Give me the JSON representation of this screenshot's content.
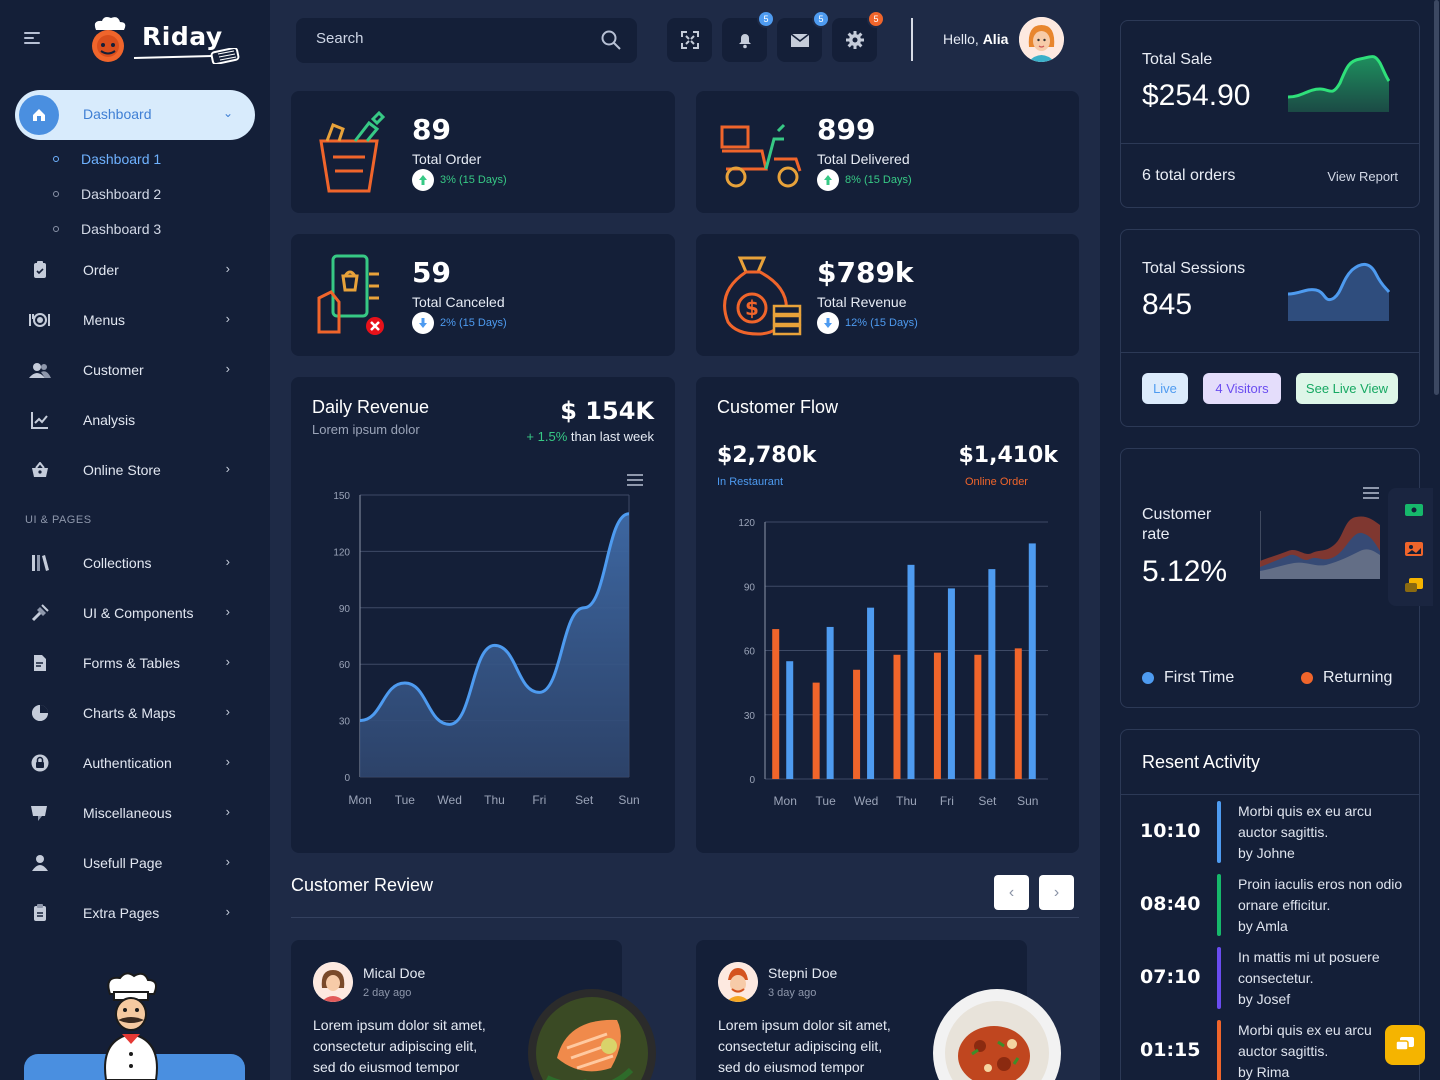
{
  "brand": {
    "name": "Riday"
  },
  "sidebar": {
    "active": {
      "label": "Dashboard"
    },
    "subitems": [
      "Dashboard 1",
      "Dashboard 2",
      "Dashboard 3"
    ],
    "items": [
      {
        "label": "Order",
        "icon": "clipboard-check-icon"
      },
      {
        "label": "Menus",
        "icon": "cutlery-icon"
      },
      {
        "label": "Customer",
        "icon": "users-icon"
      },
      {
        "label": "Analysis",
        "icon": "line-chart-icon"
      },
      {
        "label": "Online Store",
        "icon": "basket-icon"
      }
    ],
    "section_label": "UI & PAGES",
    "pages": [
      {
        "label": "Collections",
        "icon": "books-icon"
      },
      {
        "label": "UI & Components",
        "icon": "tools-icon"
      },
      {
        "label": "Forms & Tables",
        "icon": "form-icon"
      },
      {
        "label": "Charts & Maps",
        "icon": "pie-chart-icon"
      },
      {
        "label": "Authentication",
        "icon": "lock-icon"
      },
      {
        "label": "Miscellaneous",
        "icon": "misc-icon"
      },
      {
        "label": "Usefull Page",
        "icon": "user-icon"
      },
      {
        "label": "Extra Pages",
        "icon": "document-icon"
      }
    ]
  },
  "topbar": {
    "search_placeholder": "Search",
    "badges": {
      "notifications": "5",
      "messages": "5",
      "settings": "5"
    },
    "greeting": "Hello,",
    "user_name": "Alia"
  },
  "stats": [
    {
      "value": "89",
      "label": "Total Order",
      "change": "3% (15 Days)",
      "dir": "up"
    },
    {
      "value": "899",
      "label": "Total Delivered",
      "change": "8% (15 Days)",
      "dir": "up"
    },
    {
      "value": "59",
      "label": "Total Canceled",
      "change": "2% (15 Days)",
      "dir": "down"
    },
    {
      "value": "$789k",
      "label": "Total Revenue",
      "change": "12% (15 Days)",
      "dir": "down"
    }
  ],
  "daily_revenue": {
    "title": "Daily Revenue",
    "subtitle": "Lorem ipsum dolor",
    "value": "$ 154K",
    "change": "+ 1.5%",
    "change_note": "than last week"
  },
  "customer_flow": {
    "title": "Customer Flow",
    "restaurant_value": "$2,780k",
    "restaurant_label": "In Restaurant",
    "online_value": "$1,410k",
    "online_label": "Online Order"
  },
  "chart_data": [
    {
      "type": "area",
      "title": "Daily Revenue",
      "categories": [
        "Mon",
        "Tue",
        "Wed",
        "Thu",
        "Fri",
        "Set",
        "Sun"
      ],
      "values": [
        30,
        50,
        28,
        70,
        45,
        90,
        140
      ],
      "ylim": [
        0,
        150
      ],
      "yticks": [
        0,
        30,
        60,
        90,
        120,
        150
      ],
      "grid": true,
      "colors": {
        "line": "#4e9bf0"
      }
    },
    {
      "type": "bar",
      "title": "Customer Flow",
      "categories": [
        "Mon",
        "Tue",
        "Wed",
        "Thu",
        "Fri",
        "Set",
        "Sun"
      ],
      "series": [
        {
          "name": "Online Order",
          "values": [
            70,
            45,
            51,
            58,
            59,
            58,
            61
          ],
          "color": "#f0652b"
        },
        {
          "name": "In Restaurant",
          "values": [
            55,
            71,
            80,
            100,
            89,
            98,
            110
          ],
          "color": "#4e9bf0"
        }
      ],
      "ylim": [
        0,
        120
      ],
      "yticks": [
        0,
        30,
        60,
        90,
        120
      ],
      "grid": true
    }
  ],
  "reviews": {
    "title": "Customer Review",
    "items": [
      {
        "name": "Mical Doe",
        "time": "2 day ago",
        "text": "Lorem ipsum dolor sit amet, consectetur adipiscing elit, sed do eiusmod tempor"
      },
      {
        "name": "Stepni Doe",
        "time": "3 day ago",
        "text": "Lorem ipsum dolor sit amet, consectetur adipiscing elit, sed do eiusmod tempor"
      }
    ]
  },
  "right": {
    "total_sale": {
      "label": "Total Sale",
      "value": "$254.90",
      "orders": "6 total orders",
      "link": "View Report"
    },
    "sessions": {
      "label": "Total Sessions",
      "value": "845",
      "live": "Live",
      "visitors": "4 Visitors",
      "see_live": "See Live View"
    },
    "customer_rate": {
      "label": "Customer rate",
      "value": "5.12%",
      "legend_first": "First Time",
      "legend_returning": "Returning"
    },
    "activity": {
      "title": "Resent Activity",
      "items": [
        {
          "time": "10:10",
          "text": "Morbi quis ex eu arcu auctor sagittis.",
          "by": "by Johne",
          "color": "#4e9bf0"
        },
        {
          "time": "08:40",
          "text": "Proin iaculis eros non odio ornare efficitur.",
          "by": "by Amla",
          "color": "#16b86b"
        },
        {
          "time": "07:10",
          "text": "In mattis mi ut posuere consectetur.",
          "by": "by Josef",
          "color": "#6a4cf0"
        },
        {
          "time": "01:15",
          "text": "Morbi quis ex eu arcu auctor sagittis.",
          "by": "by Rima",
          "color": "#f0652b"
        }
      ]
    }
  }
}
